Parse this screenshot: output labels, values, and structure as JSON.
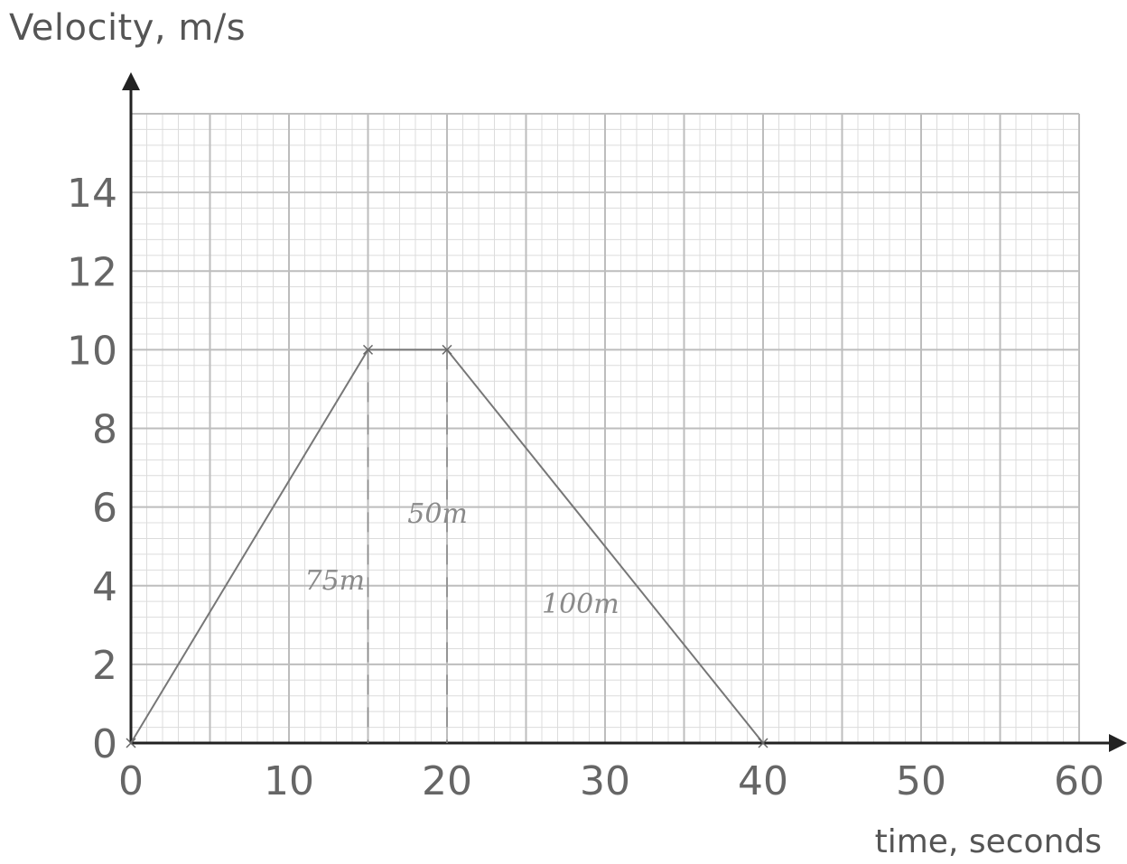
{
  "chart_data": {
    "type": "line",
    "ylabel": "Velocity, m/s",
    "xlabel": "time, seconds",
    "x_ticks": [
      "0",
      "10",
      "20",
      "30",
      "40",
      "50",
      "60"
    ],
    "y_ticks": [
      "0",
      "2",
      "4",
      "6",
      "8",
      "10",
      "12",
      "14"
    ],
    "xlim": [
      0,
      60
    ],
    "ylim": [
      0,
      16
    ],
    "grid": true,
    "series": [
      {
        "values": [
          [
            0,
            0
          ],
          [
            15,
            10
          ],
          [
            20,
            10
          ],
          [
            40,
            0
          ]
        ]
      }
    ],
    "dashed_verticals": [
      15,
      20
    ],
    "annotations": [
      {
        "text": "75m",
        "x": 11,
        "y": 3.9
      },
      {
        "text": "50m",
        "x": 17.5,
        "y": 5.6
      },
      {
        "text": "100m",
        "x": 26,
        "y": 3.3
      }
    ],
    "colors": {
      "major_grid": "#bdbdbd",
      "minor_grid": "#dcdcdc",
      "line": "#777777",
      "axis": "#222222"
    }
  }
}
